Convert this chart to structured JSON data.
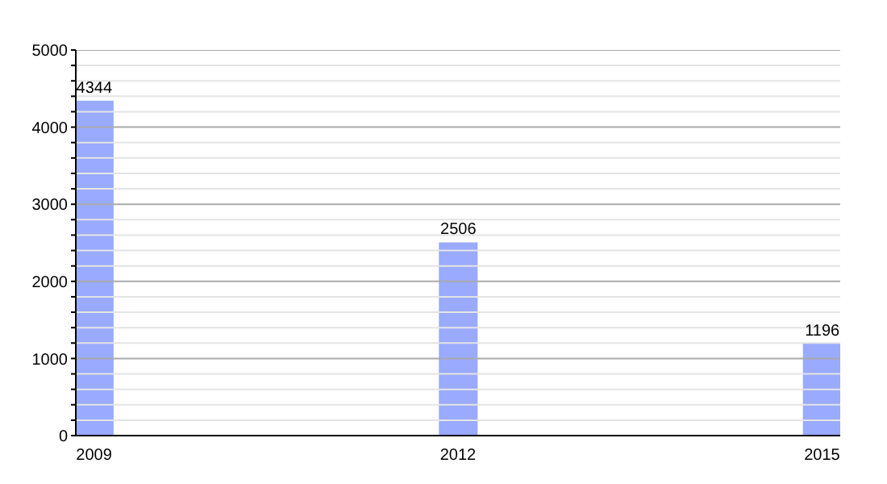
{
  "chart_data": {
    "type": "bar",
    "x": [
      2009,
      2012,
      2015
    ],
    "values": [
      4344,
      2506,
      1196
    ],
    "color": "#99aaff",
    "data_labels": true,
    "grid": "y",
    "xlim": [
      2008.85,
      2015.15
    ],
    "xticks": [
      2009,
      2012,
      2015
    ],
    "ylim": [
      0,
      5000
    ],
    "yticks": [
      0,
      {
        "value": 200,
        "label": null
      },
      {
        "value": 400,
        "label": null
      },
      {
        "value": 600,
        "label": null
      },
      {
        "value": 800,
        "label": null
      },
      1000,
      {
        "value": 1200,
        "label": null
      },
      {
        "value": 1400,
        "label": null
      },
      {
        "value": 1600,
        "label": null
      },
      {
        "value": 1800,
        "label": null
      },
      2000,
      {
        "value": 2200,
        "label": null
      },
      {
        "value": 2400,
        "label": null
      },
      {
        "value": 2600,
        "label": null
      },
      {
        "value": 2800,
        "label": null
      },
      3000,
      {
        "value": 3200,
        "label": null
      },
      {
        "value": 3400,
        "label": null
      },
      {
        "value": 3600,
        "label": null
      },
      {
        "value": 3800,
        "label": null
      },
      4000,
      {
        "value": 4200,
        "label": null
      },
      {
        "value": 4400,
        "label": null
      },
      {
        "value": 4600,
        "label": null
      },
      {
        "value": 4800,
        "label": null
      },
      5000
    ]
  }
}
